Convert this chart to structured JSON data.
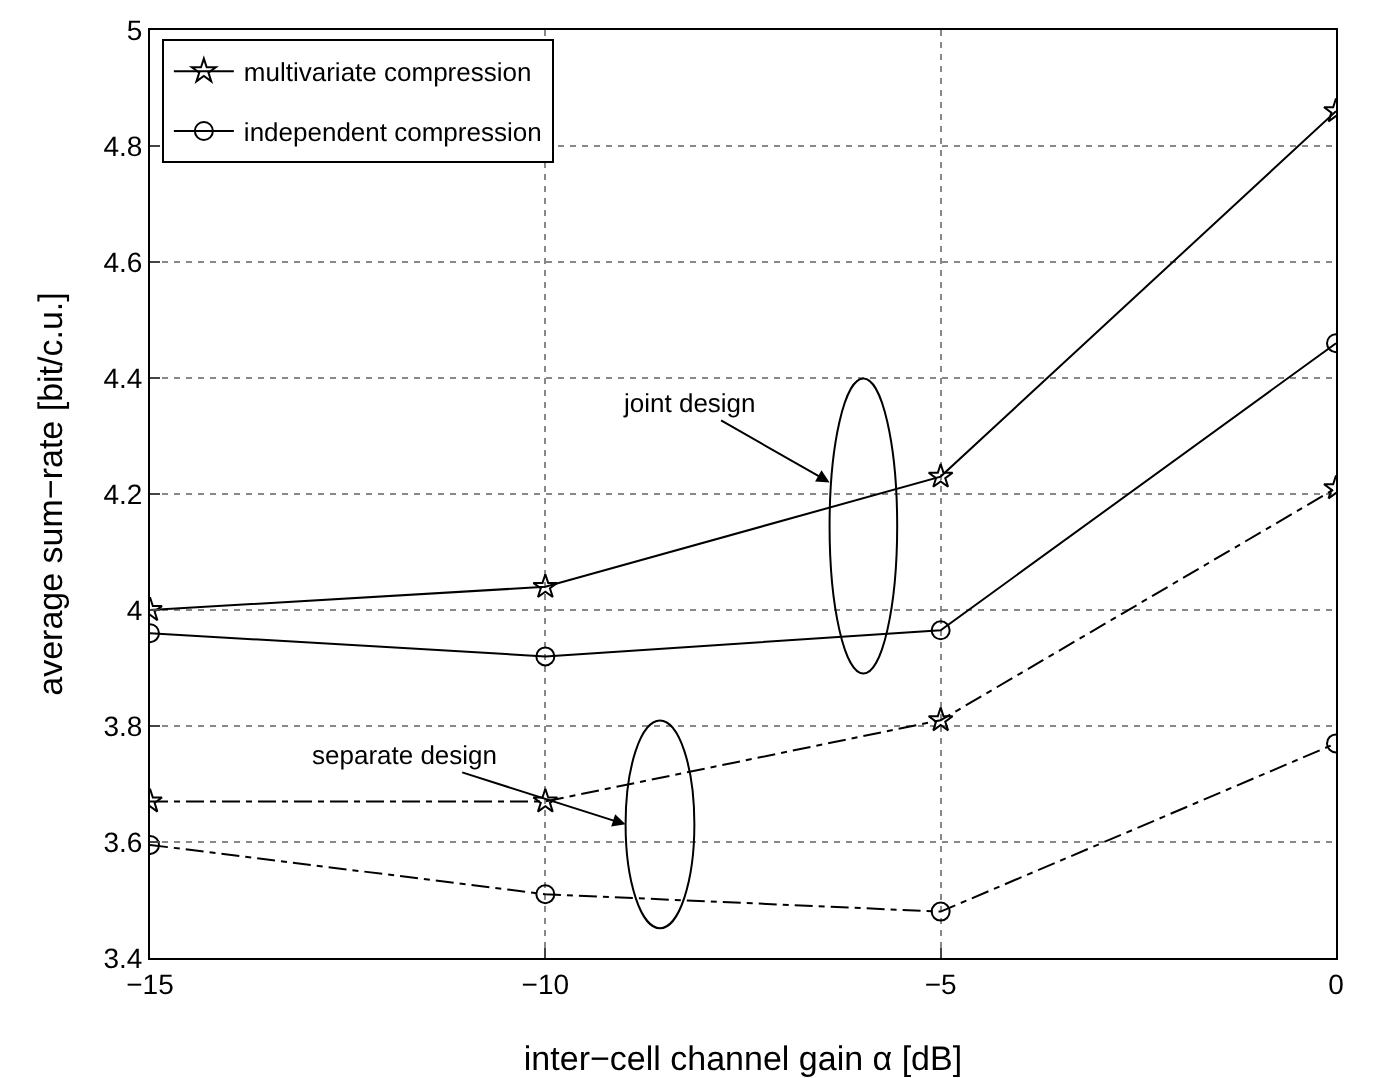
{
  "chart_data": {
    "type": "line",
    "xlabel": "inter−cell channel gain α [dB]",
    "ylabel": "average sum−rate [bit/c.u.]",
    "x": [
      -15,
      -10,
      -5,
      0
    ],
    "series": [
      {
        "name": "multivariate compression",
        "color": "#000000",
        "marker": "star",
        "line_style": "solid",
        "values": [
          4.0,
          4.04,
          4.23,
          4.86
        ]
      },
      {
        "name": "independent compression",
        "color": "#000000",
        "marker": "circle",
        "line_style": "solid",
        "values": [
          3.96,
          3.92,
          3.965,
          4.46
        ]
      },
      {
        "color": "#000000",
        "marker": "star",
        "line_style": "dashed",
        "values": [
          3.67,
          3.67,
          3.81,
          4.21
        ]
      },
      {
        "color": "#000000",
        "marker": "circle",
        "line_style": "dashed",
        "values": [
          3.595,
          3.51,
          3.48,
          3.77
        ]
      }
    ],
    "xlim": [
      -15,
      0
    ],
    "xticks": [
      -15,
      -10,
      -5,
      0
    ],
    "ylim": [
      3.4,
      5
    ],
    "yticks": [
      3.4,
      3.6,
      3.8,
      4,
      4.2,
      4.4,
      4.6,
      4.8,
      5
    ],
    "grid": true,
    "legend": "top left",
    "annotations": [
      "joint design",
      "separate design"
    ]
  }
}
